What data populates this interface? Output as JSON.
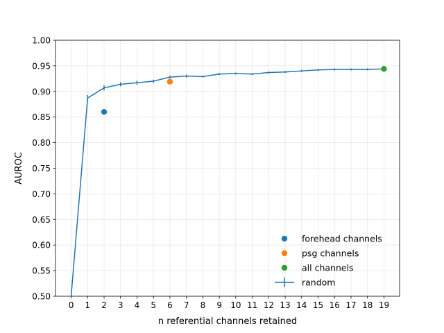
{
  "chart_data": {
    "type": "line",
    "title": "",
    "xlabel": "n referential channels retained",
    "ylabel": "AUROC",
    "xlim": [
      -0.95,
      19.95
    ],
    "ylim": [
      0.5,
      1.0
    ],
    "x_ticks": [
      0,
      1,
      2,
      3,
      4,
      5,
      6,
      7,
      8,
      9,
      10,
      11,
      12,
      13,
      14,
      15,
      16,
      17,
      18,
      19
    ],
    "y_ticks": [
      0.5,
      0.55,
      0.6,
      0.65,
      0.7,
      0.75,
      0.8,
      0.85,
      0.9,
      0.95,
      1.0
    ],
    "y_tick_labels": [
      "0.50",
      "0.55",
      "0.60",
      "0.65",
      "0.70",
      "0.75",
      "0.80",
      "0.85",
      "0.90",
      "0.95",
      "1.00"
    ],
    "grid": true,
    "legend_position": "lower-right",
    "series": [
      {
        "name": "random",
        "kind": "line_errorbar",
        "color": "#1f77b4",
        "x": [
          0,
          1,
          2,
          3,
          4,
          5,
          6,
          7,
          8,
          9,
          10,
          11,
          12,
          13,
          14,
          15,
          16,
          17,
          18,
          19
        ],
        "y": [
          0.5,
          0.887,
          0.907,
          0.914,
          0.917,
          0.92,
          0.928,
          0.93,
          0.929,
          0.934,
          0.935,
          0.934,
          0.937,
          0.938,
          0.94,
          0.942,
          0.943,
          0.943,
          0.943,
          0.944
        ],
        "yerr": [
          0.0,
          0.006,
          0.005,
          0.004,
          0.004,
          0.003,
          0.003,
          0.003,
          0.002,
          0.002,
          0.002,
          0.001,
          0.002,
          0.001,
          0.001,
          0.001,
          0.001,
          0.001,
          0.001,
          0.001
        ]
      },
      {
        "name": "forehead channels",
        "kind": "point",
        "color": "#1f77b4",
        "x": [
          2
        ],
        "y": [
          0.86
        ]
      },
      {
        "name": "psg channels",
        "kind": "point",
        "color": "#ff7f0e",
        "x": [
          6
        ],
        "y": [
          0.919
        ]
      },
      {
        "name": "all channels",
        "kind": "point",
        "color": "#2ca02c",
        "x": [
          19
        ],
        "y": [
          0.944
        ]
      }
    ],
    "legend": [
      "forehead channels",
      "psg channels",
      "all channels",
      "random"
    ]
  }
}
